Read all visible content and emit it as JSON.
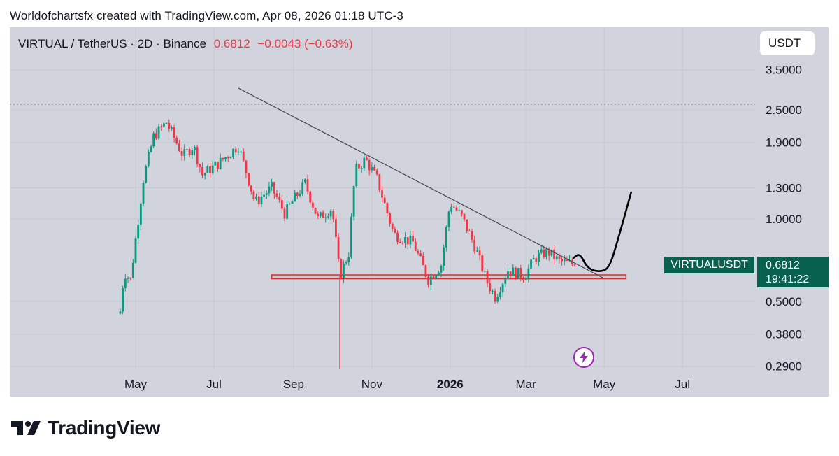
{
  "header": {
    "credit": "Worldofchartsfx created with TradingView.com, Apr 08, 2026 01:18 UTC-3"
  },
  "symbol_bar": {
    "symbol": "VIRTUAL / TetherUS · 2D · Binance",
    "price": "0.6812",
    "change": "−0.0043 (−0.63%)"
  },
  "currency_button": "USDT",
  "price_tag": {
    "ticker": "VIRTUALUSDT",
    "price": "0.6812",
    "countdown": "19:41:22"
  },
  "bolt_icon": "lightning-bolt-icon",
  "branding": {
    "logo": "tradingview-logo",
    "text": "TradingView"
  },
  "colors": {
    "bull": "#089981",
    "bear": "#f23645",
    "background": "#d1d4dc",
    "price_tag": "#08604f",
    "accent_purple": "#9c27b0"
  },
  "chart_data": {
    "type": "candlestick",
    "scale": "log",
    "ylim": [
      0.29,
      3.9
    ],
    "y_ticks": [
      "3.5000",
      "2.5000",
      "1.9000",
      "1.3000",
      "1.0000",
      "0.5000",
      "0.3800",
      "0.2900"
    ],
    "x_ticks": [
      {
        "label": "May",
        "bold": false
      },
      {
        "label": "Jul",
        "bold": false
      },
      {
        "label": "Sep",
        "bold": false
      },
      {
        "label": "Nov",
        "bold": false
      },
      {
        "label": "2026",
        "bold": true
      },
      {
        "label": "Mar",
        "bold": false
      },
      {
        "label": "May",
        "bold": false
      },
      {
        "label": "Jul",
        "bold": false
      }
    ],
    "grid": true,
    "last_price": 0.6812,
    "dotted_high_line": 2.62,
    "series": [
      {
        "name": "VIRTUALUSDT",
        "anchors": [
          [
            "2025-04-19",
            0.46
          ],
          [
            "2025-04-22",
            0.64
          ],
          [
            "2025-04-27",
            0.6
          ],
          [
            "2025-05-07",
            1.4
          ],
          [
            "2025-05-15",
            2.0
          ],
          [
            "2025-05-25",
            2.25
          ],
          [
            "2025-06-07",
            1.7
          ],
          [
            "2025-06-15",
            1.85
          ],
          [
            "2025-06-22",
            1.45
          ],
          [
            "2025-07-05",
            1.6
          ],
          [
            "2025-07-20",
            1.85
          ],
          [
            "2025-08-02",
            1.15
          ],
          [
            "2025-08-15",
            1.3
          ],
          [
            "2025-08-25",
            1.05
          ],
          [
            "2025-09-10",
            1.35
          ],
          [
            "2025-09-20",
            1.0
          ],
          [
            "2025-10-01",
            1.1
          ],
          [
            "2025-10-07",
            0.62
          ],
          [
            "2025-10-14",
            0.75
          ],
          [
            "2025-10-19",
            1.5
          ],
          [
            "2025-10-27",
            1.65
          ],
          [
            "2025-11-05",
            1.4
          ],
          [
            "2025-11-18",
            0.88
          ],
          [
            "2025-12-03",
            0.82
          ],
          [
            "2025-12-15",
            0.6
          ],
          [
            "2025-12-25",
            0.68
          ],
          [
            "2026-01-01",
            1.15
          ],
          [
            "2026-01-10",
            1.02
          ],
          [
            "2026-01-20",
            0.8
          ],
          [
            "2026-01-29",
            0.6
          ],
          [
            "2026-02-05",
            0.52
          ],
          [
            "2026-02-15",
            0.65
          ],
          [
            "2026-02-28",
            0.62
          ],
          [
            "2026-03-08",
            0.72
          ],
          [
            "2026-03-18",
            0.76
          ],
          [
            "2026-03-27",
            0.7
          ],
          [
            "2026-04-08",
            0.6812
          ]
        ]
      }
    ],
    "annotations": {
      "trendline": [
        [
          "2025-07-20",
          3.0
        ],
        [
          "2026-04-30",
          0.61
        ]
      ],
      "support_box": {
        "from": "2025-08-15",
        "to": "2026-05-18",
        "top": 0.625,
        "bottom": 0.605
      },
      "vertical_line": {
        "date": "2025-10-07",
        "from": 0.62,
        "to": 0.28
      },
      "projection": [
        [
          "2026-04-07",
          0.72
        ],
        [
          "2026-04-12",
          0.75
        ],
        [
          "2026-04-18",
          0.66
        ],
        [
          "2026-04-27",
          0.64
        ],
        [
          "2026-05-05",
          0.66
        ],
        [
          "2026-05-12",
          0.85
        ],
        [
          "2026-05-22",
          1.25
        ]
      ]
    }
  }
}
